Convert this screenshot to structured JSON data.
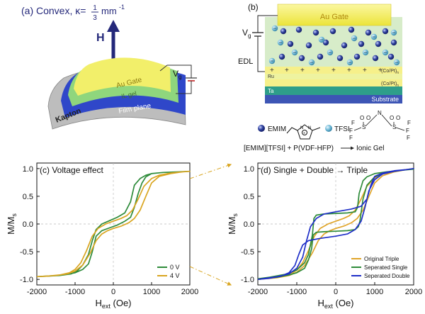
{
  "panel_a": {
    "title": "(a)  Convex, κ=",
    "kappa_num": "1",
    "kappa_den": "3",
    "kappa_unit": "mm",
    "kappa_exp": "-1",
    "field_label": "H",
    "voltage_label": "V",
    "voltage_sub": "g",
    "layer_gate": "Au Gate",
    "layer_gel": "IL gel",
    "layer_film": "Film plane",
    "layer_substrate": "Kapton",
    "colors": {
      "gate": "#f2ef6a",
      "gel": "#9fdc8a",
      "film": "#2f47c9",
      "substrate": "#c9c9c9",
      "arrow": "#24287a"
    }
  },
  "panel_b": {
    "label": "(b)",
    "gate": "Au Gate",
    "voltage_label": "V",
    "voltage_sub": "g",
    "edl": "EDL",
    "ru": "Ru",
    "co_pt_top": "(Co/Pt)",
    "co_pt_top_sub": "n",
    "co_pt_bottom": "(Co/Pt)",
    "co_pt_bottom_sub": "n",
    "ta": "Ta",
    "substrate": "Substrate",
    "legend_emim": "EMIM",
    "legend_tfsi": "TFSI",
    "recipe": "[EMIM][TFSI] + P(VDF-HFP)",
    "recipe_result": "Ionic Gel",
    "colors": {
      "gate": "#f2ee5a",
      "gel": "#d7ecc9",
      "magnet": "#f6f08a",
      "ta": "#2e9e8a",
      "substrate": "#3d55b5",
      "cation": "#2d3f9c",
      "anion": "#6fb8d6"
    }
  },
  "chart_data": [
    {
      "type": "line",
      "panel_label": "(c) Voltage effect",
      "xlabel_main": "H",
      "xlabel_sub": "ext",
      "xlabel_unit": "(Oe)",
      "ylabel_main": "M/M",
      "ylabel_sub": "s",
      "xlim": [
        -2000,
        2000
      ],
      "ylim": [
        -1.1,
        1.1
      ],
      "xticks": [
        -2000,
        -1000,
        0,
        1000,
        2000
      ],
      "yticks": [
        -1.0,
        -0.5,
        0.0,
        0.5,
        1.0
      ],
      "legend_position": "bottom-right",
      "series": [
        {
          "name": "0 V",
          "color": "#2e8b3a",
          "x": [
            -2000,
            -1500,
            -1200,
            -1000,
            -800,
            -650,
            -550,
            -450,
            -300,
            -100,
            100,
            300,
            450,
            550,
            650,
            750,
            850,
            1000,
            1300,
            1700,
            2000,
            1700,
            1300,
            1000,
            850,
            700,
            550,
            450,
            300,
            100,
            -100,
            -300,
            -450,
            -550,
            -650,
            -800,
            -950,
            -1100,
            -1400,
            -1700,
            -2000
          ],
          "y": [
            -0.95,
            -0.93,
            -0.91,
            -0.88,
            -0.82,
            -0.72,
            -0.5,
            -0.22,
            -0.12,
            -0.07,
            -0.02,
            0.05,
            0.12,
            0.3,
            0.55,
            0.74,
            0.85,
            0.91,
            0.93,
            0.94,
            0.95,
            0.94,
            0.93,
            0.91,
            0.88,
            0.82,
            0.7,
            0.4,
            0.2,
            0.12,
            0.06,
            0.0,
            -0.1,
            -0.3,
            -0.55,
            -0.74,
            -0.85,
            -0.9,
            -0.93,
            -0.94,
            -0.95
          ]
        },
        {
          "name": "4 V",
          "color": "#d9a520",
          "x": [
            -2000,
            -1500,
            -1200,
            -1000,
            -800,
            -600,
            -450,
            -300,
            -150,
            0,
            200,
            400,
            550,
            700,
            850,
            1000,
            1200,
            1500,
            1800,
            2000,
            1800,
            1500,
            1200,
            1000,
            800,
            650,
            500,
            350,
            200,
            0,
            -200,
            -400,
            -550,
            -700,
            -850,
            -1000,
            -1150,
            -1400,
            -1700,
            -2000
          ],
          "y": [
            -0.95,
            -0.93,
            -0.9,
            -0.85,
            -0.74,
            -0.52,
            -0.3,
            -0.18,
            -0.12,
            -0.08,
            -0.04,
            0.02,
            0.1,
            0.25,
            0.5,
            0.74,
            0.86,
            0.91,
            0.94,
            0.95,
            0.94,
            0.92,
            0.88,
            0.82,
            0.68,
            0.45,
            0.25,
            0.15,
            0.1,
            0.05,
            0.0,
            -0.08,
            -0.22,
            -0.48,
            -0.7,
            -0.82,
            -0.88,
            -0.92,
            -0.94,
            -0.95
          ]
        }
      ]
    },
    {
      "type": "line",
      "panel_label": "(d) Single + Double → Triple",
      "xlabel_main": "H",
      "xlabel_sub": "ext",
      "xlabel_unit": "(Oe)",
      "ylabel_main": "M/M",
      "ylabel_sub": "s",
      "xlim": [
        -2000,
        2000
      ],
      "ylim": [
        -1.1,
        1.1
      ],
      "xticks": [
        -2000,
        -1000,
        0,
        1000,
        2000
      ],
      "yticks": [
        -1.0,
        -0.5,
        0.0,
        0.5,
        1.0
      ],
      "legend_position": "bottom-right",
      "series": [
        {
          "name": "Original Triple",
          "color": "#e0a52a",
          "x": [
            -2000,
            -1500,
            -1200,
            -1000,
            -800,
            -600,
            -450,
            -300,
            -150,
            0,
            200,
            400,
            550,
            700,
            850,
            1000,
            1200,
            1500,
            1800,
            2000,
            1800,
            1500,
            1200,
            1000,
            800,
            650,
            500,
            350,
            200,
            0,
            -200,
            -400,
            -550,
            -700,
            -850,
            -1000,
            -1150,
            -1400,
            -1700,
            -2000
          ],
          "y": [
            -1.0,
            -0.97,
            -0.93,
            -0.87,
            -0.75,
            -0.52,
            -0.3,
            -0.18,
            -0.12,
            -0.08,
            -0.04,
            0.02,
            0.1,
            0.25,
            0.5,
            0.74,
            0.87,
            0.94,
            0.98,
            1.0,
            0.98,
            0.95,
            0.9,
            0.83,
            0.68,
            0.45,
            0.25,
            0.15,
            0.1,
            0.05,
            0.0,
            -0.08,
            -0.22,
            -0.48,
            -0.7,
            -0.83,
            -0.9,
            -0.95,
            -0.98,
            -1.0
          ]
        },
        {
          "name": "Seperated Single",
          "color": "#2e8b3a",
          "x": [
            -2000,
            -1500,
            -1200,
            -1000,
            -800,
            -700,
            -620,
            -580,
            -500,
            -300,
            0,
            300,
            500,
            580,
            620,
            700,
            800,
            1000,
            1300,
            1700,
            2000,
            1700,
            1300,
            1000,
            800,
            700,
            600,
            560,
            500,
            300,
            0,
            -300,
            -500,
            -560,
            -600,
            -700,
            -800,
            -1000,
            -1300,
            -1700,
            -2000
          ],
          "y": [
            -0.99,
            -0.96,
            -0.92,
            -0.88,
            -0.8,
            -0.65,
            -0.45,
            -0.2,
            -0.15,
            -0.14,
            -0.13,
            -0.12,
            -0.1,
            -0.05,
            0.05,
            0.45,
            0.7,
            0.85,
            0.93,
            0.97,
            0.99,
            0.97,
            0.94,
            0.91,
            0.85,
            0.78,
            0.55,
            0.3,
            0.22,
            0.2,
            0.19,
            0.18,
            0.16,
            0.1,
            -0.2,
            -0.55,
            -0.7,
            -0.83,
            -0.91,
            -0.96,
            -0.99
          ]
        },
        {
          "name": "Seperated Double",
          "color": "#1f2fc8",
          "x": [
            -2000,
            -1700,
            -1400,
            -1200,
            -1050,
            -950,
            -850,
            -700,
            -400,
            0,
            300,
            500,
            650,
            750,
            850,
            1000,
            1200,
            1500,
            1800,
            2000,
            1800,
            1500,
            1200,
            1000,
            900,
            800,
            650,
            400,
            0,
            -300,
            -500,
            -650,
            -750,
            -850,
            -1000,
            -1200,
            -1500,
            -1800,
            -2000
          ],
          "y": [
            -1.0,
            -0.98,
            -0.94,
            -0.88,
            -0.75,
            -0.55,
            -0.38,
            -0.3,
            -0.26,
            -0.22,
            -0.18,
            -0.1,
            0.05,
            0.3,
            0.6,
            0.8,
            0.9,
            0.95,
            0.98,
            1.0,
            0.98,
            0.96,
            0.92,
            0.86,
            0.7,
            0.45,
            0.32,
            0.27,
            0.22,
            0.18,
            0.1,
            -0.05,
            -0.3,
            -0.6,
            -0.8,
            -0.9,
            -0.95,
            -0.98,
            -1.0
          ]
        }
      ]
    }
  ]
}
